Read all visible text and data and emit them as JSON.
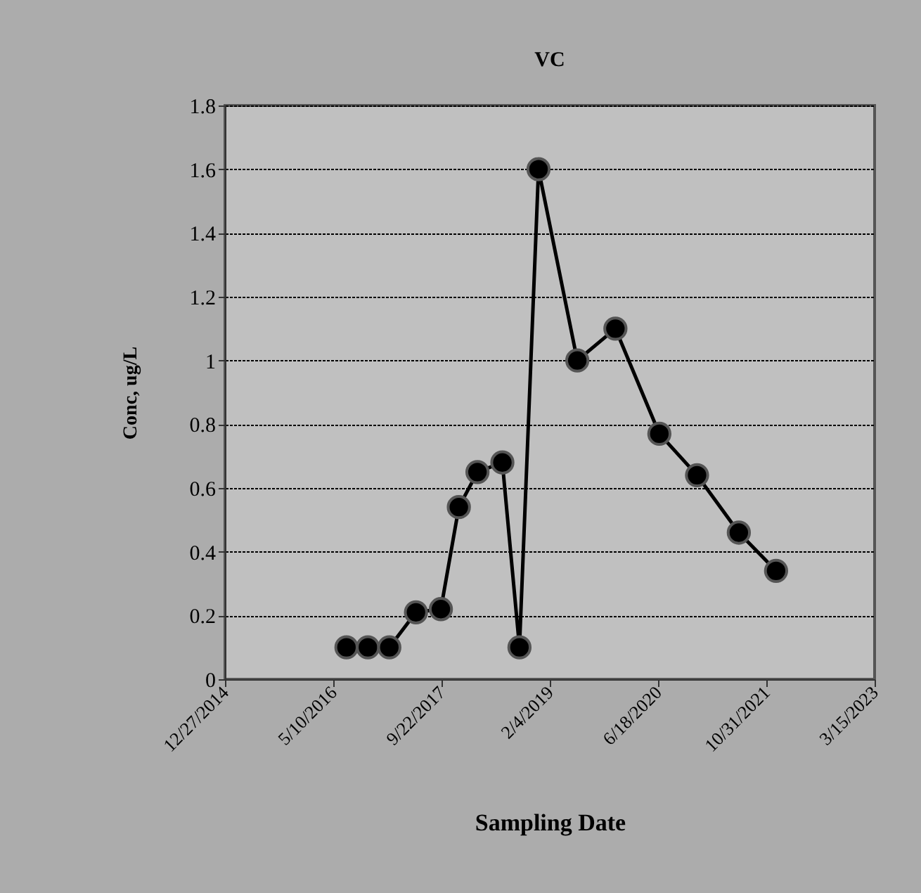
{
  "chart_data": {
    "type": "line",
    "title": "VC",
    "xlabel": "Sampling Date",
    "ylabel": "Conc, ug/L",
    "x": [
      "2016-07-10",
      "2016-10-17",
      "2017-01-24",
      "2017-05-27",
      "2017-09-19",
      "2017-12-11",
      "2018-03-07",
      "2018-06-30",
      "2018-09-17",
      "2018-12-14",
      "2019-06-11",
      "2019-12-04",
      "2020-06-24",
      "2020-12-15",
      "2021-06-26",
      "2021-12-15"
    ],
    "series": [
      {
        "color": "#000000",
        "values": [
          0.1,
          0.1,
          0.1,
          0.21,
          0.22,
          0.54,
          0.65,
          0.68,
          0.1,
          1.6,
          1.0,
          1.1,
          0.77,
          0.64,
          0.46,
          0.34
        ]
      }
    ],
    "xlim": [
      "2014-12-27",
      "2023-03-15"
    ],
    "xticks": [
      {
        "value": "2014-12-27",
        "label": "12/27/2014"
      },
      {
        "value": "2016-05-10",
        "label": "5/10/2016"
      },
      {
        "value": "2017-09-22",
        "label": "9/22/2017"
      },
      {
        "value": "2019-02-04",
        "label": "2/4/2019"
      },
      {
        "value": "2020-06-18",
        "label": "6/18/2020"
      },
      {
        "value": "2021-10-31",
        "label": "10/31/2021"
      },
      {
        "value": "2023-03-15",
        "label": "3/15/2023"
      }
    ],
    "ylim": [
      0,
      1.8
    ],
    "yticks": [
      0,
      0.2,
      0.4,
      0.6,
      0.8,
      1,
      1.2,
      1.4,
      1.6,
      1.8
    ],
    "grid": "y",
    "marker": "circle",
    "line_style": "solid"
  }
}
